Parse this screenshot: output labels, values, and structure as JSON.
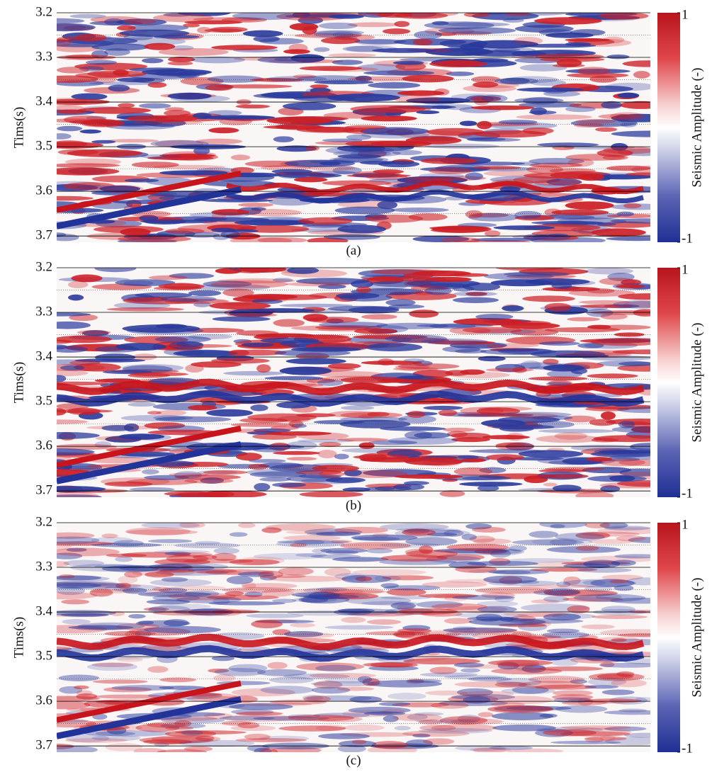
{
  "chart_data": [
    {
      "type": "seismic",
      "caption": "(a)",
      "ylabel": "Tims(s)",
      "ylim": [
        3.2,
        3.714
      ],
      "yticks": [
        3.2,
        3.3,
        3.4,
        3.5,
        3.6,
        3.7
      ],
      "colorbar": {
        "label": "Seismic Amplitude (-)",
        "lim": [
          -1,
          1
        ],
        "ticks": [
          1,
          -1
        ]
      }
    },
    {
      "type": "seismic",
      "caption": "(b)",
      "ylabel": "Tims(s)",
      "ylim": [
        3.2,
        3.714
      ],
      "yticks": [
        3.2,
        3.3,
        3.4,
        3.5,
        3.6,
        3.7
      ],
      "colorbar": {
        "label": "Seismic Amplitude (-)",
        "lim": [
          -1,
          1
        ],
        "ticks": [
          1,
          -1
        ]
      }
    },
    {
      "type": "seismic",
      "caption": "(c)",
      "ylabel": "Tims(s)",
      "ylim": [
        3.2,
        3.714
      ],
      "yticks": [
        3.2,
        3.3,
        3.4,
        3.5,
        3.6,
        3.7
      ],
      "colorbar": {
        "label": "Seismic Amplitude (-)",
        "lim": [
          -1,
          1
        ],
        "ticks": [
          1,
          -1
        ]
      }
    }
  ]
}
